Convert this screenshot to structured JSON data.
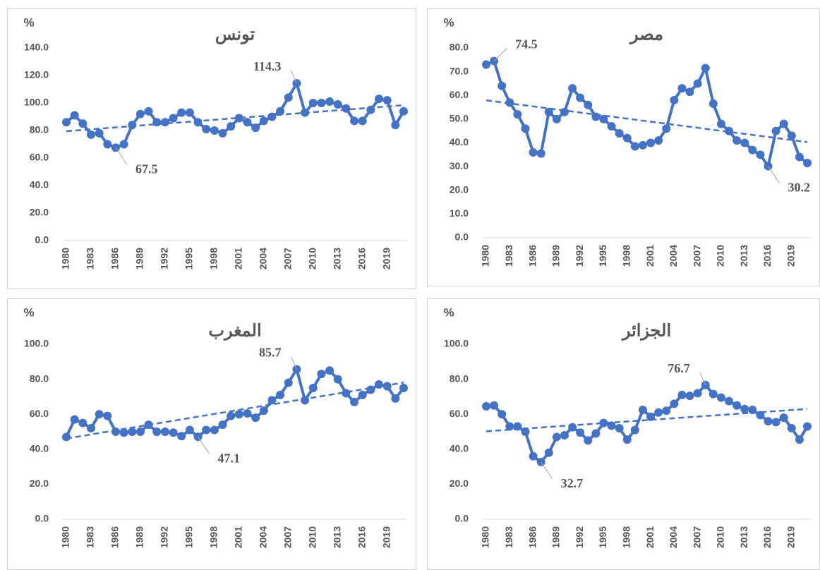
{
  "chart_data": [
    {
      "type": "line",
      "title": "تونس",
      "y_label": "%",
      "color": "#4472c4",
      "trendline": true,
      "categories": [
        "1980",
        null,
        null,
        "1983",
        null,
        null,
        "1986",
        null,
        null,
        "1989",
        null,
        null,
        "1992",
        null,
        null,
        "1995",
        null,
        null,
        "1998",
        null,
        null,
        "2001",
        null,
        null,
        "2004",
        null,
        null,
        "2007",
        null,
        null,
        "2010",
        null,
        null,
        "2013",
        null,
        null,
        "2016",
        null,
        null,
        "2019",
        null,
        null
      ],
      "values": [
        86,
        91,
        85,
        77,
        78,
        70,
        67.5,
        70,
        84,
        92,
        94,
        86,
        86,
        89,
        93,
        93,
        86,
        81,
        80,
        78,
        83,
        89,
        86,
        82,
        87,
        90,
        94,
        104,
        114.3,
        93,
        100,
        100,
        101,
        99,
        96,
        87,
        87,
        95,
        103,
        102,
        84,
        94
      ],
      "value_labels": [
        null,
        null,
        null,
        null,
        null,
        null,
        "67.5",
        null,
        null,
        null,
        null,
        null,
        null,
        null,
        null,
        null,
        null,
        null,
        null,
        null,
        null,
        null,
        null,
        null,
        null,
        null,
        null,
        null,
        "114.3",
        null,
        null,
        null,
        null,
        null,
        null,
        null,
        null,
        null,
        null,
        null,
        null,
        null
      ],
      "ylim": [
        0,
        140
      ],
      "yticks": [
        {
          "value": 0,
          "label": "0.0"
        },
        {
          "value": 20,
          "label": "20.0"
        },
        {
          "value": 40,
          "label": "40.0"
        },
        {
          "value": 60,
          "label": "60.0"
        },
        {
          "value": 80,
          "label": "80.0"
        },
        {
          "value": 100,
          "label": "100.0"
        },
        {
          "value": 120,
          "label": "120.0"
        },
        {
          "value": 140,
          "label": "140.0"
        }
      ]
    },
    {
      "type": "line",
      "title": "مصر",
      "y_label": "%",
      "color": "#4472c4",
      "trendline": true,
      "categories": [
        "1980",
        null,
        null,
        "1983",
        null,
        null,
        "1986",
        null,
        null,
        "1989",
        null,
        null,
        "1992",
        null,
        null,
        "1995",
        null,
        null,
        "1998",
        null,
        null,
        "2001",
        null,
        null,
        "2004",
        null,
        null,
        "2007",
        null,
        null,
        "2010",
        null,
        null,
        "2013",
        null,
        null,
        "2016",
        null,
        null,
        "2019",
        null,
        null
      ],
      "values": [
        73,
        74.5,
        64,
        57,
        52,
        46,
        36,
        35.5,
        53,
        50,
        53,
        63,
        59,
        56,
        51,
        50,
        47,
        44,
        42,
        38.5,
        39,
        40,
        41,
        46,
        58,
        63,
        61.5,
        65,
        71.5,
        56.5,
        48,
        45,
        41,
        40,
        37,
        35,
        30.2,
        45,
        48,
        43,
        34,
        31.5
      ],
      "value_labels": [
        null,
        "74.5",
        null,
        null,
        null,
        null,
        null,
        null,
        null,
        null,
        null,
        null,
        null,
        null,
        null,
        null,
        null,
        null,
        null,
        null,
        null,
        null,
        null,
        null,
        null,
        null,
        null,
        null,
        null,
        null,
        null,
        null,
        null,
        null,
        null,
        null,
        "30.2",
        null,
        null,
        null,
        null,
        null
      ],
      "ylim": [
        0,
        80
      ],
      "yticks": [
        {
          "value": 0,
          "label": "0.0"
        },
        {
          "value": 10,
          "label": "10.0"
        },
        {
          "value": 20,
          "label": "20.0"
        },
        {
          "value": 30,
          "label": "30.0"
        },
        {
          "value": 40,
          "label": "40.0"
        },
        {
          "value": 50,
          "label": "50.0"
        },
        {
          "value": 60,
          "label": "60.0"
        },
        {
          "value": 70,
          "label": "70.0"
        },
        {
          "value": 80,
          "label": "80.0"
        }
      ]
    },
    {
      "type": "line",
      "title": "المغرب",
      "y_label": "%",
      "color": "#4472c4",
      "trendline": true,
      "categories": [
        "1980",
        null,
        null,
        "1983",
        null,
        null,
        "1986",
        null,
        null,
        "1989",
        null,
        null,
        "1992",
        null,
        null,
        "1995",
        null,
        null,
        "1998",
        null,
        null,
        "2001",
        null,
        null,
        "2004",
        null,
        null,
        "2007",
        null,
        null,
        "2010",
        null,
        null,
        "2013",
        null,
        null,
        "2016",
        null,
        null,
        "2019",
        null,
        null
      ],
      "values": [
        47,
        57,
        55,
        52,
        60,
        59,
        50,
        49.5,
        50,
        50,
        54,
        50,
        50,
        49.5,
        47.5,
        51,
        47.1,
        51,
        51,
        54,
        59,
        60,
        60.5,
        58,
        62,
        68,
        71,
        78,
        85.7,
        68,
        75,
        83,
        85,
        80,
        72,
        67,
        71,
        74,
        77,
        76,
        69,
        75
      ],
      "value_labels": [
        null,
        null,
        null,
        null,
        null,
        null,
        null,
        null,
        null,
        null,
        null,
        null,
        null,
        null,
        null,
        null,
        "47.1",
        null,
        null,
        null,
        null,
        null,
        null,
        null,
        null,
        null,
        null,
        null,
        "85.7",
        null,
        null,
        null,
        null,
        null,
        null,
        null,
        null,
        null,
        null,
        null,
        null,
        null
      ],
      "ylim": [
        0,
        100
      ],
      "yticks": [
        {
          "value": 0,
          "label": "0.0"
        },
        {
          "value": 20,
          "label": "20.0"
        },
        {
          "value": 40,
          "label": "40.0"
        },
        {
          "value": 60,
          "label": "60.0"
        },
        {
          "value": 80,
          "label": "80.0"
        },
        {
          "value": 100,
          "label": "100.0"
        }
      ]
    },
    {
      "type": "line",
      "title": "الجزائر",
      "y_label": "%",
      "color": "#4472c4",
      "trendline": true,
      "categories": [
        "1980",
        null,
        null,
        "1983",
        null,
        null,
        "1986",
        null,
        null,
        "1989",
        null,
        null,
        "1992",
        null,
        null,
        "1995",
        null,
        null,
        "1998",
        null,
        null,
        "2001",
        null,
        null,
        "2004",
        null,
        null,
        "2007",
        null,
        null,
        "2010",
        null,
        null,
        "2013",
        null,
        null,
        "2016",
        null,
        null,
        "2019",
        null,
        null
      ],
      "values": [
        64.5,
        65,
        60,
        53,
        53,
        50,
        36,
        32.7,
        38,
        47,
        48,
        52.5,
        49.5,
        45,
        49,
        55,
        53.5,
        52,
        45.5,
        51,
        62.5,
        58.5,
        61,
        62,
        66,
        71,
        70.5,
        72,
        76.7,
        71.5,
        69.5,
        67.5,
        65,
        63,
        62.5,
        59.5,
        56,
        55.5,
        58,
        52,
        45.5,
        53
      ],
      "value_labels": [
        null,
        null,
        null,
        null,
        null,
        null,
        null,
        "32.7",
        null,
        null,
        null,
        null,
        null,
        null,
        null,
        null,
        null,
        null,
        null,
        null,
        null,
        null,
        null,
        null,
        null,
        null,
        null,
        null,
        "76.7",
        null,
        null,
        null,
        null,
        null,
        null,
        null,
        null,
        null,
        null,
        null,
        null,
        null
      ],
      "ylim": [
        0,
        100
      ],
      "yticks": [
        {
          "value": 0,
          "label": "0.0"
        },
        {
          "value": 20,
          "label": "20.0"
        },
        {
          "value": 40,
          "label": "40.0"
        },
        {
          "value": 60,
          "label": "60.0"
        },
        {
          "value": 80,
          "label": "80.0"
        },
        {
          "value": 100,
          "label": "100.0"
        }
      ]
    }
  ]
}
